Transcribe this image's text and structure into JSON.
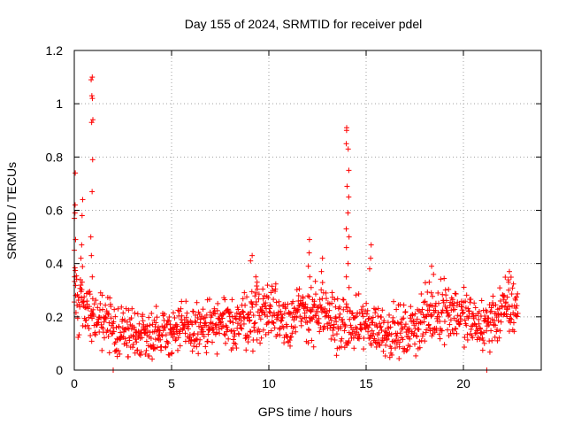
{
  "chart_data": {
    "type": "scatter",
    "title": "Day 155 of 2024, SRMTID for receiver pdel",
    "xlabel": "GPS time / hours",
    "ylabel": "SRMTID / TECUs",
    "xlim": [
      0,
      24
    ],
    "ylim": [
      0,
      1.2
    ],
    "x_ticks": [
      0,
      5,
      10,
      15,
      20
    ],
    "x_tick_labels": [
      "0",
      "5",
      "10",
      "15",
      "20"
    ],
    "y_ticks": [
      0,
      0.2,
      0.4,
      0.6,
      0.8,
      1.0,
      1.2
    ],
    "y_tick_labels": [
      "0",
      "0.2",
      "0.4",
      "0.6",
      "0.8",
      "1",
      "1.2"
    ],
    "grid": true,
    "marker": "plus",
    "color": "#ff0000",
    "series": [
      {
        "name": "SRMTID",
        "baseline_profile": {
          "x": [
            0.0,
            0.5,
            1.0,
            2.0,
            3.0,
            4.0,
            5.0,
            6.0,
            7.0,
            8.0,
            9.0,
            10.0,
            11.0,
            12.0,
            13.0,
            14.0,
            15.0,
            16.0,
            17.0,
            18.0,
            19.0,
            20.0,
            21.0,
            22.0,
            22.8
          ],
          "y": [
            0.3,
            0.24,
            0.2,
            0.15,
            0.14,
            0.14,
            0.15,
            0.15,
            0.16,
            0.17,
            0.2,
            0.23,
            0.19,
            0.22,
            0.2,
            0.16,
            0.17,
            0.15,
            0.14,
            0.19,
            0.24,
            0.2,
            0.16,
            0.22,
            0.25
          ]
        },
        "spikes": [
          {
            "x": 0.0,
            "y": [
              0.15,
              0.35,
              0.45,
              0.52,
              0.59,
              0.62,
              0.74,
              0.68,
              0.57,
              0.49,
              0.41,
              0.28
            ]
          },
          {
            "x": 0.4,
            "y": [
              0.42,
              0.58,
              0.64,
              0.47,
              0.33
            ]
          },
          {
            "x": 0.9,
            "y": [
              1.1,
              1.09,
              1.03,
              1.02,
              0.94,
              0.93,
              0.79,
              0.67,
              0.5,
              0.43,
              0.35
            ]
          },
          {
            "x": 9.1,
            "y": [
              0.43,
              0.41
            ]
          },
          {
            "x": 9.4,
            "y": [
              0.35,
              0.33
            ]
          },
          {
            "x": 12.1,
            "y": [
              0.49,
              0.44,
              0.39,
              0.35,
              0.31
            ]
          },
          {
            "x": 12.7,
            "y": [
              0.42,
              0.37
            ]
          },
          {
            "x": 14.05,
            "y": [
              0.91,
              0.9,
              0.85,
              0.83,
              0.75,
              0.69,
              0.65,
              0.59,
              0.53,
              0.5,
              0.46,
              0.4,
              0.35,
              0.31
            ]
          },
          {
            "x": 15.2,
            "y": [
              0.47,
              0.42,
              0.38
            ]
          },
          {
            "x": 18.3,
            "y": [
              0.39,
              0.33,
              0.29
            ]
          },
          {
            "x": 22.4,
            "y": [
              0.37,
              0.33
            ]
          }
        ],
        "zeros_x": [
          2.0,
          21.2
        ]
      }
    ]
  }
}
